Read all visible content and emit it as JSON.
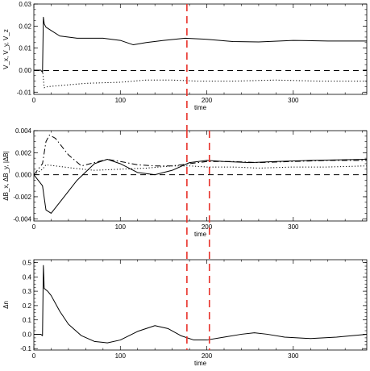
{
  "chart_data": [
    {
      "type": "line",
      "xlabel": "time",
      "ylabel": "V_x, V_y, V_z",
      "xlim": [
        0,
        385
      ],
      "ylim": [
        -0.011,
        0.03
      ],
      "xticks": [
        0,
        100,
        200,
        300
      ],
      "yticks": [
        -0.01,
        0.0,
        0.01,
        0.02,
        0.03
      ],
      "ytick_labels": [
        "-0.01",
        "0.00",
        "0.01",
        "0.02",
        "0.03"
      ],
      "series": [
        {
          "style": "solid",
          "x": [
            0,
            8,
            10,
            11,
            12,
            14,
            20,
            30,
            50,
            80,
            100,
            115,
            130,
            150,
            175,
            200,
            230,
            260,
            300,
            340,
            385
          ],
          "y": [
            0.0,
            0.0,
            -0.001,
            0.024,
            0.021,
            0.0195,
            0.018,
            0.0155,
            0.0145,
            0.0145,
            0.0135,
            0.0115,
            0.0125,
            0.0135,
            0.0145,
            0.014,
            0.013,
            0.0128,
            0.0135,
            0.0132,
            0.0132
          ]
        },
        {
          "style": "dashed",
          "x": [
            0,
            385
          ],
          "y": [
            -0.0002,
            -0.0002
          ]
        },
        {
          "style": "dotted",
          "x": [
            0,
            10,
            12,
            16,
            30,
            60,
            100,
            130,
            160,
            190,
            230,
            280,
            330,
            385
          ],
          "y": [
            0.0,
            0.0,
            -0.008,
            -0.0075,
            -0.007,
            -0.006,
            -0.0055,
            -0.0045,
            -0.0045,
            -0.005,
            -0.005,
            -0.0045,
            -0.005,
            -0.005
          ]
        }
      ]
    },
    {
      "type": "line",
      "xlabel": "time",
      "ylabel": "ΔB_x, ΔB_y, |ΔB|",
      "xlim": [
        0,
        385
      ],
      "ylim": [
        -0.0042,
        0.004
      ],
      "xticks": [
        0,
        100,
        200,
        300
      ],
      "yticks": [
        -0.004,
        -0.002,
        0.0,
        0.002,
        0.004
      ],
      "ytick_labels": [
        "-0.004",
        "-0.002",
        "0.000",
        "0.002",
        "0.004"
      ],
      "series": [
        {
          "style": "solid",
          "x": [
            0,
            10,
            14,
            20,
            30,
            50,
            70,
            85,
            100,
            120,
            140,
            160,
            180,
            200,
            220,
            250,
            280,
            320,
            385
          ],
          "y": [
            0.0,
            -0.001,
            -0.0032,
            -0.0035,
            -0.0025,
            -0.0005,
            0.001,
            0.0014,
            0.001,
            0.0002,
            0.0,
            0.0004,
            0.0011,
            0.0013,
            0.0012,
            0.0011,
            0.0012,
            0.0013,
            0.0014
          ]
        },
        {
          "style": "dashdot",
          "x": [
            0,
            10,
            14,
            18,
            25,
            40,
            55,
            70,
            85,
            100,
            120,
            140,
            160,
            180,
            200,
            230,
            260,
            300,
            340,
            385
          ],
          "y": [
            0.0,
            0.001,
            0.003,
            0.0036,
            0.0033,
            0.0018,
            0.0008,
            0.0011,
            0.0014,
            0.0012,
            0.0009,
            0.0008,
            0.0008,
            0.001,
            0.0012,
            0.0012,
            0.0011,
            0.0012,
            0.0013,
            0.0013
          ]
        },
        {
          "style": "dotted",
          "x": [
            0,
            10,
            14,
            25,
            45,
            70,
            100,
            130,
            160,
            180,
            200,
            230,
            260,
            300,
            340,
            385
          ],
          "y": [
            0.0,
            0.0005,
            0.0009,
            0.0008,
            0.0006,
            0.0004,
            0.0005,
            0.0006,
            0.0008,
            0.0008,
            0.0007,
            0.0007,
            0.0006,
            0.0007,
            0.0007,
            0.0008
          ]
        },
        {
          "style": "dashed",
          "x": [
            0,
            385
          ],
          "y": [
            0.0,
            0.0
          ]
        }
      ]
    },
    {
      "type": "line",
      "xlabel": "time",
      "ylabel": "Δn",
      "xlim": [
        0,
        385
      ],
      "ylim": [
        -0.11,
        0.52
      ],
      "xticks": [
        0,
        100,
        200,
        300
      ],
      "yticks": [
        -0.1,
        0.0,
        0.1,
        0.2,
        0.3,
        0.4,
        0.5
      ],
      "ytick_labels": [
        "-0.1",
        "0.0",
        "0.1",
        "0.2",
        "0.3",
        "0.4",
        "0.5"
      ],
      "series": [
        {
          "style": "solid",
          "x": [
            0,
            8,
            10,
            11,
            12,
            14,
            16,
            20,
            30,
            40,
            55,
            70,
            85,
            100,
            120,
            140,
            155,
            170,
            185,
            200,
            220,
            240,
            255,
            270,
            290,
            320,
            350,
            385
          ],
          "y": [
            0.0,
            0.0,
            -0.01,
            0.48,
            0.32,
            0.31,
            0.3,
            0.27,
            0.16,
            0.07,
            -0.01,
            -0.05,
            -0.06,
            -0.04,
            0.02,
            0.06,
            0.04,
            -0.01,
            -0.04,
            -0.04,
            -0.02,
            0.0,
            0.01,
            0.0,
            -0.02,
            -0.03,
            -0.02,
            0.0
          ]
        }
      ]
    }
  ],
  "markers": {
    "color": "#e8322a",
    "upper_vline_times": [
      177
    ],
    "lower_vline_times": [
      177,
      203
    ]
  }
}
